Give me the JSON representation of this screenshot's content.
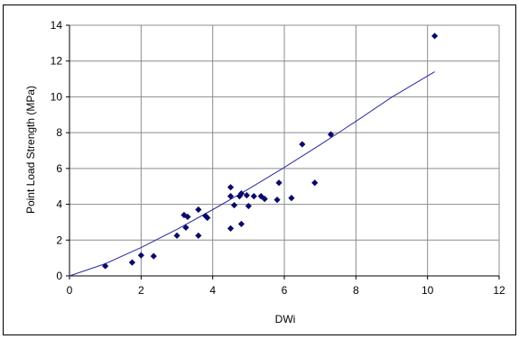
{
  "chart_data": {
    "type": "scatter",
    "xlabel": "DWi",
    "ylabel": "Point Load Strength (MPa)",
    "xlim": [
      0,
      12
    ],
    "ylim": [
      0,
      14
    ],
    "x_ticks": [
      "0",
      "2",
      "4",
      "6",
      "8",
      "10",
      "12"
    ],
    "y_ticks": [
      "0",
      "2",
      "4",
      "6",
      "8",
      "10",
      "12",
      "14"
    ],
    "grid": true,
    "legend": "none",
    "series": [
      {
        "kind": "points",
        "color": "#0a0a6b",
        "marker": "diamond",
        "points": [
          [
            1.0,
            0.55
          ],
          [
            1.75,
            0.75
          ],
          [
            2.0,
            1.15
          ],
          [
            2.35,
            1.1
          ],
          [
            3.0,
            2.25
          ],
          [
            3.2,
            3.4
          ],
          [
            3.3,
            3.3
          ],
          [
            3.25,
            2.7
          ],
          [
            3.6,
            3.7
          ],
          [
            3.6,
            2.25
          ],
          [
            3.8,
            3.35
          ],
          [
            3.85,
            3.25
          ],
          [
            4.5,
            4.95
          ],
          [
            4.5,
            4.45
          ],
          [
            4.5,
            2.65
          ],
          [
            4.6,
            3.95
          ],
          [
            4.75,
            4.45
          ],
          [
            4.8,
            4.6
          ],
          [
            4.8,
            2.9
          ],
          [
            4.95,
            4.5
          ],
          [
            5.0,
            3.9
          ],
          [
            5.15,
            4.45
          ],
          [
            5.35,
            4.45
          ],
          [
            5.45,
            4.3
          ],
          [
            5.8,
            4.25
          ],
          [
            5.85,
            5.2
          ],
          [
            6.2,
            4.35
          ],
          [
            6.5,
            7.35
          ],
          [
            6.85,
            5.2
          ],
          [
            7.3,
            7.9
          ],
          [
            10.2,
            13.4
          ]
        ]
      },
      {
        "kind": "trendline",
        "color": "#2a2aa0",
        "points": [
          [
            0,
            0
          ],
          [
            1,
            0.68
          ],
          [
            2,
            1.58
          ],
          [
            3,
            2.6
          ],
          [
            4,
            3.7
          ],
          [
            5,
            4.85
          ],
          [
            6,
            6.06
          ],
          [
            7,
            7.32
          ],
          [
            8,
            8.63
          ],
          [
            9,
            9.98
          ],
          [
            10.2,
            11.4
          ]
        ]
      }
    ]
  },
  "colors": {
    "gridline": "#8c8c8c",
    "axis": "#000000",
    "border": "#000000"
  }
}
